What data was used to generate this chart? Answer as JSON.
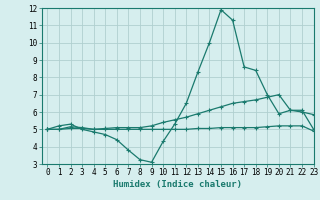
{
  "line1_x": [
    0,
    1,
    2,
    3,
    4,
    5,
    6,
    7,
    8,
    9,
    10,
    11,
    12,
    13,
    14,
    15,
    16,
    17,
    18,
    19,
    20,
    21,
    22,
    23
  ],
  "line1_y": [
    5.0,
    5.2,
    5.3,
    5.0,
    4.85,
    4.7,
    4.4,
    3.8,
    3.25,
    3.1,
    4.3,
    5.3,
    6.5,
    8.3,
    10.0,
    11.9,
    11.3,
    8.6,
    8.4,
    7.0,
    5.9,
    6.1,
    6.0,
    5.85
  ],
  "line2_x": [
    0,
    1,
    2,
    3,
    4,
    5,
    6,
    7,
    8,
    9,
    10,
    11,
    12,
    13,
    14,
    15,
    16,
    17,
    18,
    19,
    20,
    21,
    22,
    23
  ],
  "line2_y": [
    5.0,
    5.0,
    5.15,
    5.1,
    5.0,
    5.05,
    5.1,
    5.1,
    5.1,
    5.2,
    5.4,
    5.55,
    5.7,
    5.9,
    6.1,
    6.3,
    6.5,
    6.6,
    6.7,
    6.85,
    7.0,
    6.1,
    6.1,
    5.0
  ],
  "line3_x": [
    0,
    1,
    2,
    3,
    4,
    5,
    6,
    7,
    8,
    9,
    10,
    11,
    12,
    13,
    14,
    15,
    16,
    17,
    18,
    19,
    20,
    21,
    22,
    23
  ],
  "line3_y": [
    5.0,
    5.0,
    5.05,
    5.05,
    5.0,
    5.0,
    5.0,
    5.0,
    5.0,
    5.0,
    5.0,
    5.0,
    5.0,
    5.05,
    5.05,
    5.1,
    5.1,
    5.1,
    5.1,
    5.15,
    5.2,
    5.2,
    5.2,
    4.9
  ],
  "line_color": "#1a7a6e",
  "bg_color": "#d6eeee",
  "grid_color": "#b0d0d0",
  "xlabel": "Humidex (Indice chaleur)",
  "ylim": [
    3,
    12
  ],
  "xlim": [
    -0.5,
    23
  ],
  "yticks": [
    3,
    4,
    5,
    6,
    7,
    8,
    9,
    10,
    11,
    12
  ],
  "xticks": [
    0,
    1,
    2,
    3,
    4,
    5,
    6,
    7,
    8,
    9,
    10,
    11,
    12,
    13,
    14,
    15,
    16,
    17,
    18,
    19,
    20,
    21,
    22,
    23
  ],
  "marker": "+",
  "markersize": 3.5,
  "linewidth": 0.9,
  "xlabel_fontsize": 6.5,
  "tick_fontsize": 5.5
}
